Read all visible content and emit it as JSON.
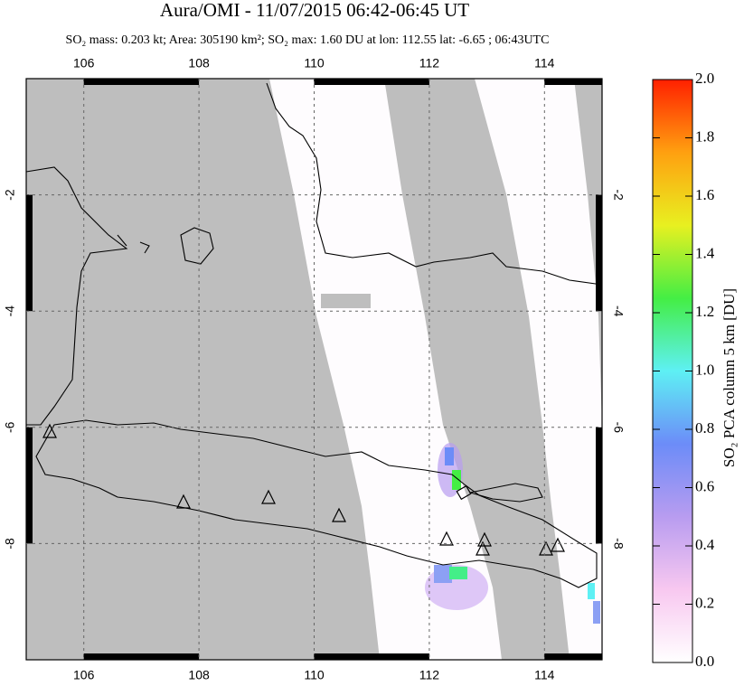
{
  "chart_data": {
    "type": "map",
    "title": "Aura/OMI - 11/07/2015 06:42-06:45 UT",
    "subtitle": "SO₂ mass: 0.203 kt; Area: 305190 km²; SO₂ max: 1.60 DU at lon: 112.55 lat: -6.65 ; 06:43UTC",
    "xlim": [
      105,
      115
    ],
    "ylim": [
      -10,
      0
    ],
    "xticks": [
      106,
      108,
      110,
      112,
      114
    ],
    "yticks": [
      -2,
      -4,
      -6,
      -8
    ],
    "grid": true,
    "colorbar": {
      "label": "SO₂ PCA column 5 km [DU]",
      "ylim": [
        0,
        2
      ],
      "yticks": [
        {
          "value": 0,
          "label": "0.0"
        },
        {
          "value": 0.2,
          "label": "0.2"
        },
        {
          "value": 0.4,
          "label": "0.4"
        },
        {
          "value": 0.6,
          "label": "0.6"
        },
        {
          "value": 0.8,
          "label": "0.8"
        },
        {
          "value": 1,
          "label": "1.0"
        },
        {
          "value": 1.2,
          "label": "1.2"
        },
        {
          "value": 1.4,
          "label": "1.4"
        },
        {
          "value": 1.6,
          "label": "1.6"
        },
        {
          "value": 1.8,
          "label": "1.8"
        },
        {
          "value": 2,
          "label": "2.0"
        }
      ],
      "colors": [
        "#ffffff",
        "#f8c8f0",
        "#b89cf0",
        "#6c8cf8",
        "#5ef0f4",
        "#44ee44",
        "#e8f020",
        "#ffa010",
        "#ff2000"
      ]
    }
  }
}
